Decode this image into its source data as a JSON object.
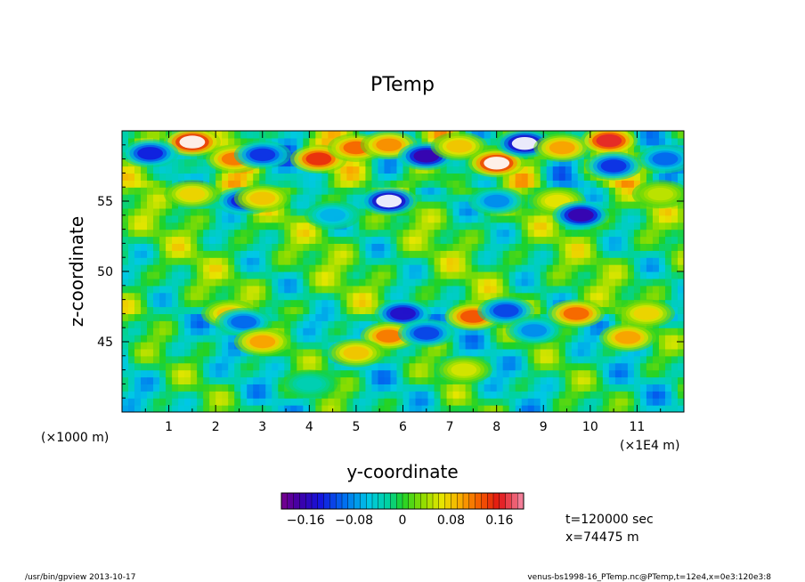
{
  "chart_data": {
    "type": "heatmap",
    "title": "PTemp",
    "xlabel": "y-coordinate",
    "ylabel": "z-coordinate",
    "x_unit_left": "(×1000 m)",
    "x_unit_right": "(×1E4 m)",
    "xlim": [
      0,
      12
    ],
    "ylim": [
      40,
      60
    ],
    "x_ticks": [
      "1",
      "2",
      "3",
      "4",
      "5",
      "6",
      "7",
      "8",
      "9",
      "10",
      "11"
    ],
    "x_tick_values": [
      1,
      2,
      3,
      4,
      5,
      6,
      7,
      8,
      9,
      10,
      11
    ],
    "y_ticks": [
      "45",
      "50",
      "55"
    ],
    "y_tick_values": [
      45,
      50,
      55
    ],
    "colorbar": {
      "min": -0.2,
      "max": 0.2,
      "step": 0.01,
      "tick_labels": [
        "−0.16",
        "−0.08",
        "0",
        "0.08",
        "0.16"
      ],
      "tick_values": [
        -0.16,
        -0.08,
        0,
        0.08,
        0.16
      ]
    },
    "features": [
      {
        "y": 1.5,
        "z": 59.2,
        "v": 0.22
      },
      {
        "y": 0.6,
        "z": 58.4,
        "v": -0.16
      },
      {
        "y": 2.4,
        "z": 58.0,
        "v": 0.14
      },
      {
        "y": 3.0,
        "z": 58.3,
        "v": -0.15
      },
      {
        "y": 4.2,
        "z": 58.0,
        "v": 0.18
      },
      {
        "y": 5.0,
        "z": 58.8,
        "v": 0.15
      },
      {
        "y": 5.7,
        "z": 59.0,
        "v": 0.13
      },
      {
        "y": 6.5,
        "z": 58.2,
        "v": -0.2
      },
      {
        "y": 7.2,
        "z": 58.9,
        "v": 0.1
      },
      {
        "y": 8.0,
        "z": 57.7,
        "v": 0.21
      },
      {
        "y": 8.6,
        "z": 59.1,
        "v": -0.22
      },
      {
        "y": 9.4,
        "z": 58.8,
        "v": 0.12
      },
      {
        "y": 10.4,
        "z": 59.3,
        "v": 0.2
      },
      {
        "y": 10.5,
        "z": 57.5,
        "v": -0.15
      },
      {
        "y": 11.6,
        "z": 58.0,
        "v": -0.12
      },
      {
        "y": 2.6,
        "z": 55.0,
        "v": -0.16
      },
      {
        "y": 3.0,
        "z": 55.2,
        "v": 0.1
      },
      {
        "y": 5.7,
        "z": 55.0,
        "v": -0.22
      },
      {
        "y": 4.5,
        "z": 54.0,
        "v": -0.08
      },
      {
        "y": 8.0,
        "z": 55.0,
        "v": -0.1
      },
      {
        "y": 9.3,
        "z": 55.0,
        "v": 0.08
      },
      {
        "y": 9.8,
        "z": 54.0,
        "v": -0.2
      },
      {
        "y": 1.5,
        "z": 55.5,
        "v": 0.09
      },
      {
        "y": 11.5,
        "z": 55.5,
        "v": 0.06
      },
      {
        "y": 6.0,
        "z": 47.0,
        "v": -0.18
      },
      {
        "y": 5.7,
        "z": 45.4,
        "v": 0.14
      },
      {
        "y": 6.5,
        "z": 45.6,
        "v": -0.14
      },
      {
        "y": 7.5,
        "z": 46.8,
        "v": 0.16
      },
      {
        "y": 8.2,
        "z": 47.2,
        "v": -0.14
      },
      {
        "y": 8.8,
        "z": 45.8,
        "v": -0.1
      },
      {
        "y": 9.7,
        "z": 47.0,
        "v": 0.15
      },
      {
        "y": 10.8,
        "z": 45.3,
        "v": 0.12
      },
      {
        "y": 2.3,
        "z": 47.0,
        "v": 0.1
      },
      {
        "y": 2.6,
        "z": 46.4,
        "v": -0.12
      },
      {
        "y": 3.0,
        "z": 45.0,
        "v": 0.12
      },
      {
        "y": 5.0,
        "z": 44.2,
        "v": 0.1
      },
      {
        "y": 7.3,
        "z": 43.0,
        "v": 0.07
      },
      {
        "y": 4.0,
        "z": 42.0,
        "v": -0.04
      },
      {
        "y": 11.2,
        "z": 47.0,
        "v": 0.09
      }
    ]
  },
  "info": {
    "time": "t=120000 sec",
    "x": "x=74475 m"
  },
  "footer": {
    "left": "/usr/bin/gpview   2013-10-17",
    "right": "venus-bs1998-16_PTemp.nc@PTemp,t=12e4,x=0e3:120e3:8"
  }
}
